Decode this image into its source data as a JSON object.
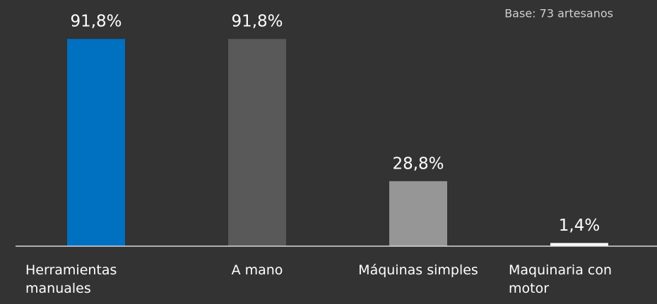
{
  "chart_data": {
    "type": "bar",
    "annotation": "Base: 73 artesanos",
    "categories": [
      "Herramientas manuales",
      "A mano",
      "Máquinas simples",
      "Maquinaria con motor"
    ],
    "values": [
      91.8,
      91.8,
      28.8,
      1.4
    ],
    "value_labels": [
      "91,8%",
      "91,8%",
      "28,8%",
      "1,4%"
    ],
    "colors": [
      "#0070c0",
      "#595959",
      "#969696",
      "#ffffff"
    ],
    "ylim": [
      0,
      100
    ]
  }
}
